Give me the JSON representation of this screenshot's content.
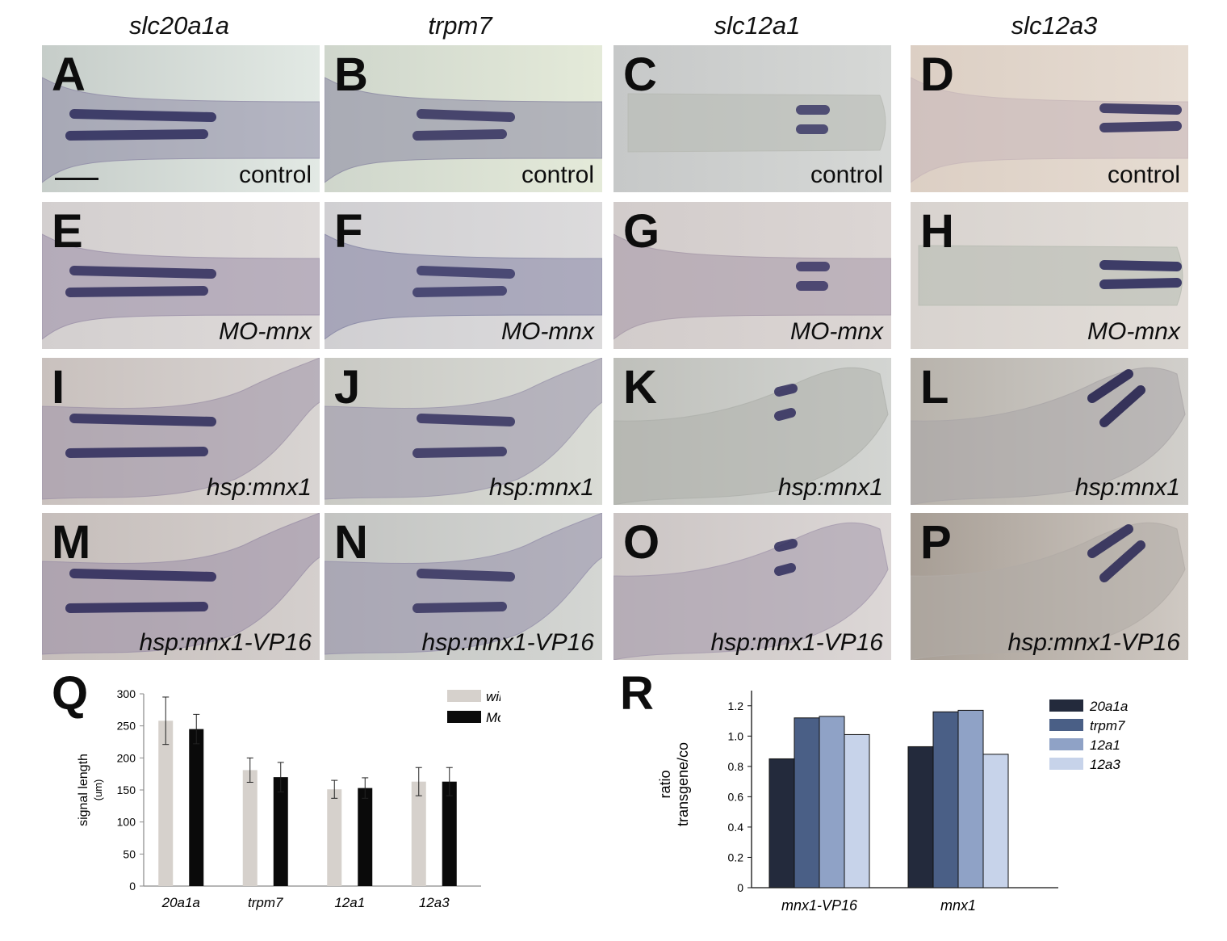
{
  "column_headers": [
    "slc20a1a",
    "trpm7",
    "slc12a1",
    "slc12a3"
  ],
  "rows": [
    {
      "condition": "control",
      "italic": false,
      "panels": [
        {
          "letter": "A",
          "bg_a": "#c6cdc9",
          "bg_b": "#e2e9e4",
          "tissue": "#8e8aa6",
          "stain": "#2c2a5a"
        },
        {
          "letter": "B",
          "bg_a": "#cfd6cc",
          "bg_b": "#e4ead9",
          "tissue": "#8b88a3",
          "stain": "#35325f"
        },
        {
          "letter": "C",
          "bg_a": "#c6c8c8",
          "bg_b": "#d6d8d6",
          "tissue": "#b7b9b3",
          "stain": "#3b3866"
        },
        {
          "letter": "D",
          "bg_a": "#dccfc4",
          "bg_b": "#e6dcd2",
          "tissue": "#c7b7b9",
          "stain": "#2e2b5c"
        }
      ]
    },
    {
      "condition": "MO-mnx",
      "italic": true,
      "panels": [
        {
          "letter": "E",
          "bg_a": "#d3cfcf",
          "bg_b": "#dedad9",
          "tissue": "#9a8ea8",
          "stain": "#302d5c"
        },
        {
          "letter": "F",
          "bg_a": "#d0cfd2",
          "bg_b": "#dcdbdc",
          "tissue": "#8584a4",
          "stain": "#3a3867"
        },
        {
          "letter": "G",
          "bg_a": "#d2cccb",
          "bg_b": "#dcd6d4",
          "tissue": "#a597a7",
          "stain": "#3a3565"
        },
        {
          "letter": "H",
          "bg_a": "#d8d3cf",
          "bg_b": "#e2ddd8",
          "tissue": "#b5bab0",
          "stain": "#252357"
        }
      ]
    },
    {
      "condition": "hsp:mnx1",
      "italic": true,
      "panels": [
        {
          "letter": "I",
          "bg_a": "#c9c1be",
          "bg_b": "#d8d4d2",
          "tissue": "#9f93a8",
          "stain": "#2d2a5a"
        },
        {
          "letter": "J",
          "bg_a": "#c9c9c4",
          "bg_b": "#d9dbd5",
          "tissue": "#9b96ab",
          "stain": "#34315f"
        },
        {
          "letter": "K",
          "bg_a": "#bfc0bb",
          "bg_b": "#d3d5d2",
          "tissue": "#aeb0ab",
          "stain": "#2f2c5c"
        },
        {
          "letter": "L",
          "bg_a": "#b8b3ac",
          "bg_b": "#d1cfcb",
          "tissue": "#aaa6a7",
          "stain": "#1f1c4a"
        }
      ]
    },
    {
      "condition": "hsp:mnx1-VP16",
      "italic": true,
      "panels": [
        {
          "letter": "M",
          "bg_a": "#c6bebb",
          "bg_b": "#d4cfcd",
          "tissue": "#9a8ea6",
          "stain": "#2a2758"
        },
        {
          "letter": "N",
          "bg_a": "#c3c4c2",
          "bg_b": "#d4d6d3",
          "tissue": "#9590aa",
          "stain": "#35325f"
        },
        {
          "letter": "O",
          "bg_a": "#cbc5c4",
          "bg_b": "#dcd7d6",
          "tissue": "#a499ac",
          "stain": "#2e2b5c"
        },
        {
          "letter": "P",
          "bg_a": "#a79e95",
          "bg_b": "#cfc9c3",
          "tissue": "#b1aba6",
          "stain": "#272554"
        }
      ]
    }
  ],
  "chart_q": {
    "panel_letter": "Q",
    "chart_data": {
      "type": "bar",
      "categories": [
        "20a1a",
        "trpm7",
        "12a1",
        "12a3"
      ],
      "series": [
        {
          "name": "wildtype",
          "color": "#d6d1cc",
          "values": [
            258,
            181,
            151,
            163
          ],
          "errors": [
            37,
            19,
            14,
            22
          ]
        },
        {
          "name": "Mo-mnx",
          "color": "#0a0a0a",
          "values": [
            245,
            170,
            153,
            163
          ],
          "errors": [
            23,
            23,
            16,
            22
          ]
        }
      ],
      "ylabel": "signal length",
      "ylabel_unit": "(um)",
      "ylim": [
        0,
        300
      ],
      "yticks": [
        0,
        50,
        100,
        150,
        200,
        250,
        300
      ],
      "legend": "top-right"
    }
  },
  "chart_r": {
    "panel_letter": "R",
    "chart_data": {
      "type": "bar",
      "categories": [
        "mnx1-VP16",
        "mnx1"
      ],
      "series": [
        {
          "name": "20a1a",
          "color": "#232a3c",
          "values": [
            0.85,
            0.93
          ]
        },
        {
          "name": "trpm7",
          "color": "#4a5f86",
          "values": [
            1.12,
            1.16
          ]
        },
        {
          "name": "12a1",
          "color": "#8fa2c6",
          "values": [
            1.13,
            1.17
          ]
        },
        {
          "name": "12a3",
          "color": "#c7d3ea",
          "values": [
            1.01,
            0.88
          ]
        }
      ],
      "ylabel_line1": "ratio",
      "ylabel_line2": "transgene/co",
      "ylim": [
        0,
        1.3
      ],
      "yticks": [
        "0",
        "0.2",
        "0.4",
        "0.6",
        "0.8",
        "1.0",
        "1.2"
      ],
      "legend": "right"
    }
  }
}
